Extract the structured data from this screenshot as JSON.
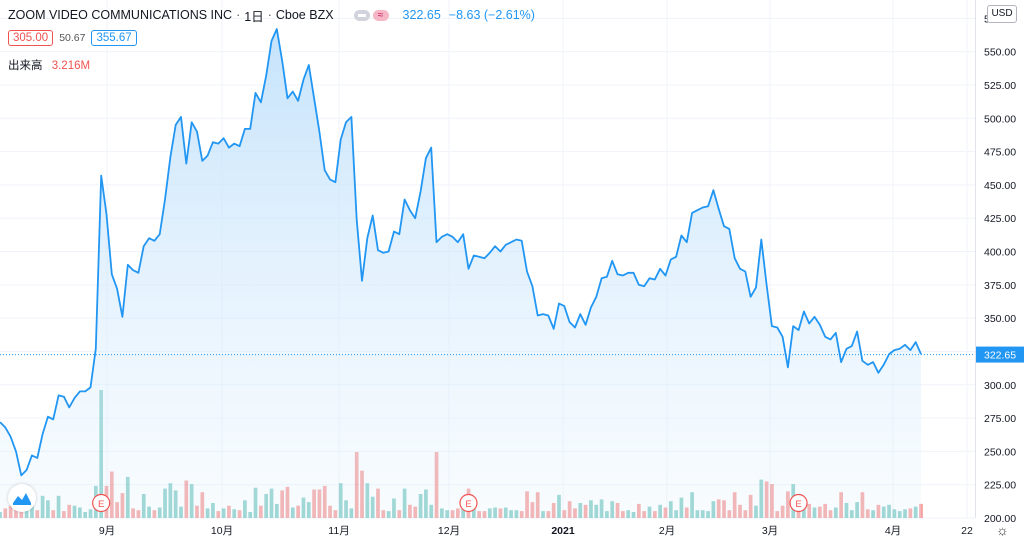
{
  "header": {
    "title": "ZOOM VIDEO COMMUNICATIONS INC",
    "interval": "1日",
    "exchange": "Cboe BZX",
    "last_price": "322.65",
    "change": "−8.63 (−2.61%)",
    "approx_symbol": "≈"
  },
  "ohlc": {
    "low_box": "305.00",
    "middle_value": "50.67",
    "high_box": "355.67"
  },
  "volume": {
    "label": "出来高",
    "value": "3.216M"
  },
  "currency_badge": "USD",
  "colors": {
    "line": "#2196f3",
    "fill": "#bbdefb",
    "vol_up": "#26a69a",
    "vol_down": "#ef5350",
    "earnings": "#ef5350"
  },
  "chart_data": {
    "type": "area",
    "price_axis": {
      "min": 200,
      "max": 585,
      "ticks": [
        "575.00",
        "550.00",
        "525.00",
        "500.00",
        "475.00",
        "450.00",
        "425.00",
        "400.00",
        "375.00",
        "350.00",
        "325.00",
        "300.00",
        "275.00",
        "250.00",
        "225.00",
        "200.00"
      ]
    },
    "time_axis_labels": [
      "9月",
      "10月",
      "11月",
      "12月",
      "2021",
      "2月",
      "3月",
      "4月",
      "22"
    ],
    "price_label": "322.65",
    "earnings_label": "E",
    "earnings_markers": [
      "9月",
      "12月",
      "3月"
    ],
    "close_series": [
      272,
      268,
      261,
      250,
      232,
      236,
      247,
      245,
      263,
      276,
      274,
      292,
      291,
      283,
      290,
      295,
      295,
      298,
      327,
      457,
      428,
      383,
      372,
      351,
      390,
      386,
      384,
      404,
      410,
      408,
      413,
      439,
      471,
      495,
      501,
      466,
      497,
      490,
      468,
      472,
      482,
      481,
      485,
      478,
      481,
      479,
      492,
      492,
      519,
      512,
      532,
      558,
      567,
      543,
      515,
      520,
      513,
      529,
      540,
      515,
      490,
      461,
      454,
      452,
      484,
      497,
      501,
      424,
      378,
      410,
      427,
      401,
      399,
      400,
      415,
      413,
      439,
      431,
      425,
      445,
      470,
      478,
      407,
      411,
      413,
      411,
      407,
      413,
      387,
      397,
      396,
      395,
      399,
      404,
      400,
      405,
      407,
      409,
      408,
      385,
      374,
      352,
      353,
      352,
      342,
      361,
      359,
      347,
      343,
      353,
      345,
      358,
      366,
      380,
      381,
      393,
      383,
      382,
      384,
      384,
      375,
      374,
      380,
      379,
      387,
      382,
      394,
      396,
      412,
      407,
      429,
      431,
      433,
      434,
      446,
      432,
      419,
      417,
      395,
      387,
      385,
      366,
      373,
      409,
      375,
      344,
      343,
      336,
      313,
      344,
      341,
      355,
      346,
      351,
      345,
      336,
      334,
      339,
      317,
      327,
      329,
      340,
      318,
      315,
      317,
      309,
      315,
      323,
      326,
      327,
      330,
      326,
      332,
      323
    ]
  }
}
